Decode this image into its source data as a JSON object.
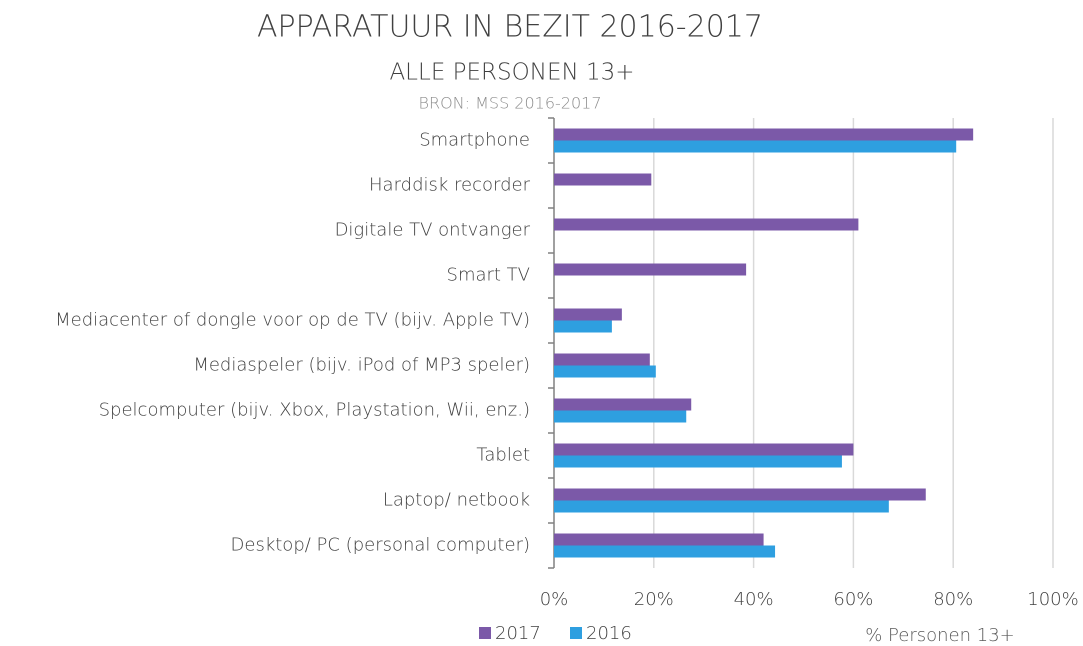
{
  "chart_data": {
    "type": "bar",
    "orientation": "horizontal",
    "title": "APPARATUUR IN BEZIT 2016-2017",
    "subtitle": "ALLE PERSONEN 13+",
    "source": "BRON: MSS 2016-2017",
    "x_label": "% Personen 13+",
    "categories": [
      "Smartphone",
      "Harddisk recorder",
      "Digitale TV ontvanger",
      "Smart TV",
      "Mediacenter of dongle voor op de TV (bijv. Apple TV)",
      "Mediaspeler (bijv. iPod of MP3 speler)",
      "Spelcomputer (bijv. Xbox, Playstation, Wii, enz.)",
      "Tablet",
      "Laptop/ netbook",
      "Desktop/ PC (personal computer)"
    ],
    "series": [
      {
        "name": "2017",
        "color": "#7b59a8",
        "values": [
          84,
          19.5,
          61,
          38.5,
          13.6,
          19.2,
          27.5,
          60,
          74.5,
          42
        ]
      },
      {
        "name": "2016",
        "color": "#2e9fe0",
        "values": [
          80.6,
          null,
          null,
          null,
          11.6,
          20.4,
          26.5,
          57.7,
          67.1,
          44.3
        ]
      }
    ],
    "xlim": [
      0,
      100
    ],
    "xticks": [
      {
        "value": 0,
        "label": "0%"
      },
      {
        "value": 20,
        "label": "20%"
      },
      {
        "value": 40,
        "label": "40%"
      },
      {
        "value": 60,
        "label": "60%"
      },
      {
        "value": 80,
        "label": "80%"
      },
      {
        "value": 100,
        "label": "100%"
      }
    ],
    "grid": true,
    "legend": "bottom"
  }
}
